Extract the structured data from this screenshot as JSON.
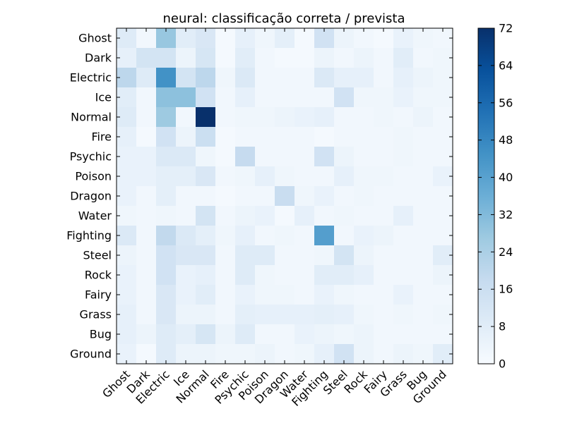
{
  "chart_data": {
    "type": "heatmap",
    "title": "neural: classificação correta / prevista",
    "xlabel": "",
    "ylabel": "",
    "categories": [
      "Ghost",
      "Dark",
      "Electric",
      "Ice",
      "Normal",
      "Fire",
      "Psychic",
      "Poison",
      "Dragon",
      "Water",
      "Fighting",
      "Steel",
      "Rock",
      "Fairy",
      "Grass",
      "Bug",
      "Ground"
    ],
    "rows": [
      "Ghost",
      "Dark",
      "Electric",
      "Ice",
      "Normal",
      "Fire",
      "Psychic",
      "Poison",
      "Dragon",
      "Water",
      "Fighting",
      "Steel",
      "Rock",
      "Fairy",
      "Grass",
      "Bug",
      "Ground"
    ],
    "colormap": "Blues",
    "colorbar": {
      "min": 0,
      "max": 72,
      "ticks": [
        0,
        8,
        16,
        24,
        32,
        40,
        48,
        56,
        64,
        72
      ]
    },
    "values": [
      [
        9,
        2,
        28,
        8,
        11,
        1,
        6,
        3,
        7,
        1,
        14,
        4,
        2,
        1,
        5,
        3,
        2
      ],
      [
        6,
        13,
        13,
        4,
        12,
        1,
        8,
        2,
        1,
        1,
        4,
        2,
        4,
        2,
        8,
        2,
        3
      ],
      [
        20,
        9,
        45,
        13,
        20,
        3,
        10,
        2,
        2,
        2,
        10,
        6,
        6,
        2,
        6,
        4,
        3
      ],
      [
        8,
        2,
        30,
        30,
        14,
        2,
        6,
        2,
        2,
        2,
        2,
        14,
        3,
        3,
        5,
        3,
        3
      ],
      [
        9,
        2,
        27,
        2,
        72,
        2,
        3,
        3,
        4,
        5,
        6,
        2,
        2,
        3,
        2,
        4,
        2
      ],
      [
        6,
        1,
        14,
        4,
        16,
        1,
        2,
        2,
        2,
        2,
        1,
        2,
        2,
        2,
        3,
        2,
        2
      ],
      [
        5,
        5,
        10,
        10,
        3,
        1,
        18,
        2,
        2,
        2,
        14,
        4,
        2,
        2,
        3,
        2,
        2
      ],
      [
        5,
        5,
        7,
        7,
        11,
        2,
        3,
        6,
        3,
        2,
        2,
        6,
        3,
        3,
        2,
        2,
        5
      ],
      [
        5,
        2,
        7,
        2,
        2,
        1,
        2,
        2,
        17,
        3,
        5,
        2,
        3,
        2,
        2,
        2,
        2
      ],
      [
        3,
        2,
        3,
        2,
        13,
        2,
        4,
        5,
        1,
        6,
        2,
        3,
        2,
        2,
        6,
        2,
        2
      ],
      [
        10,
        2,
        19,
        10,
        7,
        3,
        6,
        2,
        3,
        2,
        41,
        2,
        5,
        4,
        2,
        2,
        2
      ],
      [
        4,
        2,
        14,
        11,
        11,
        2,
        9,
        9,
        2,
        2,
        3,
        13,
        4,
        2,
        2,
        2,
        8
      ],
      [
        5,
        2,
        14,
        5,
        6,
        2,
        9,
        3,
        2,
        2,
        8,
        8,
        6,
        2,
        2,
        2,
        4
      ],
      [
        5,
        2,
        11,
        5,
        8,
        2,
        5,
        3,
        3,
        2,
        5,
        3,
        2,
        2,
        5,
        2,
        2
      ],
      [
        6,
        2,
        11,
        4,
        4,
        2,
        7,
        6,
        6,
        6,
        7,
        6,
        3,
        2,
        3,
        2,
        3
      ],
      [
        6,
        4,
        9,
        7,
        12,
        4,
        9,
        2,
        2,
        5,
        4,
        3,
        4,
        2,
        2,
        2,
        2
      ],
      [
        5,
        1,
        9,
        4,
        4,
        3,
        3,
        4,
        2,
        3,
        6,
        14,
        4,
        2,
        4,
        3,
        8
      ]
    ]
  }
}
